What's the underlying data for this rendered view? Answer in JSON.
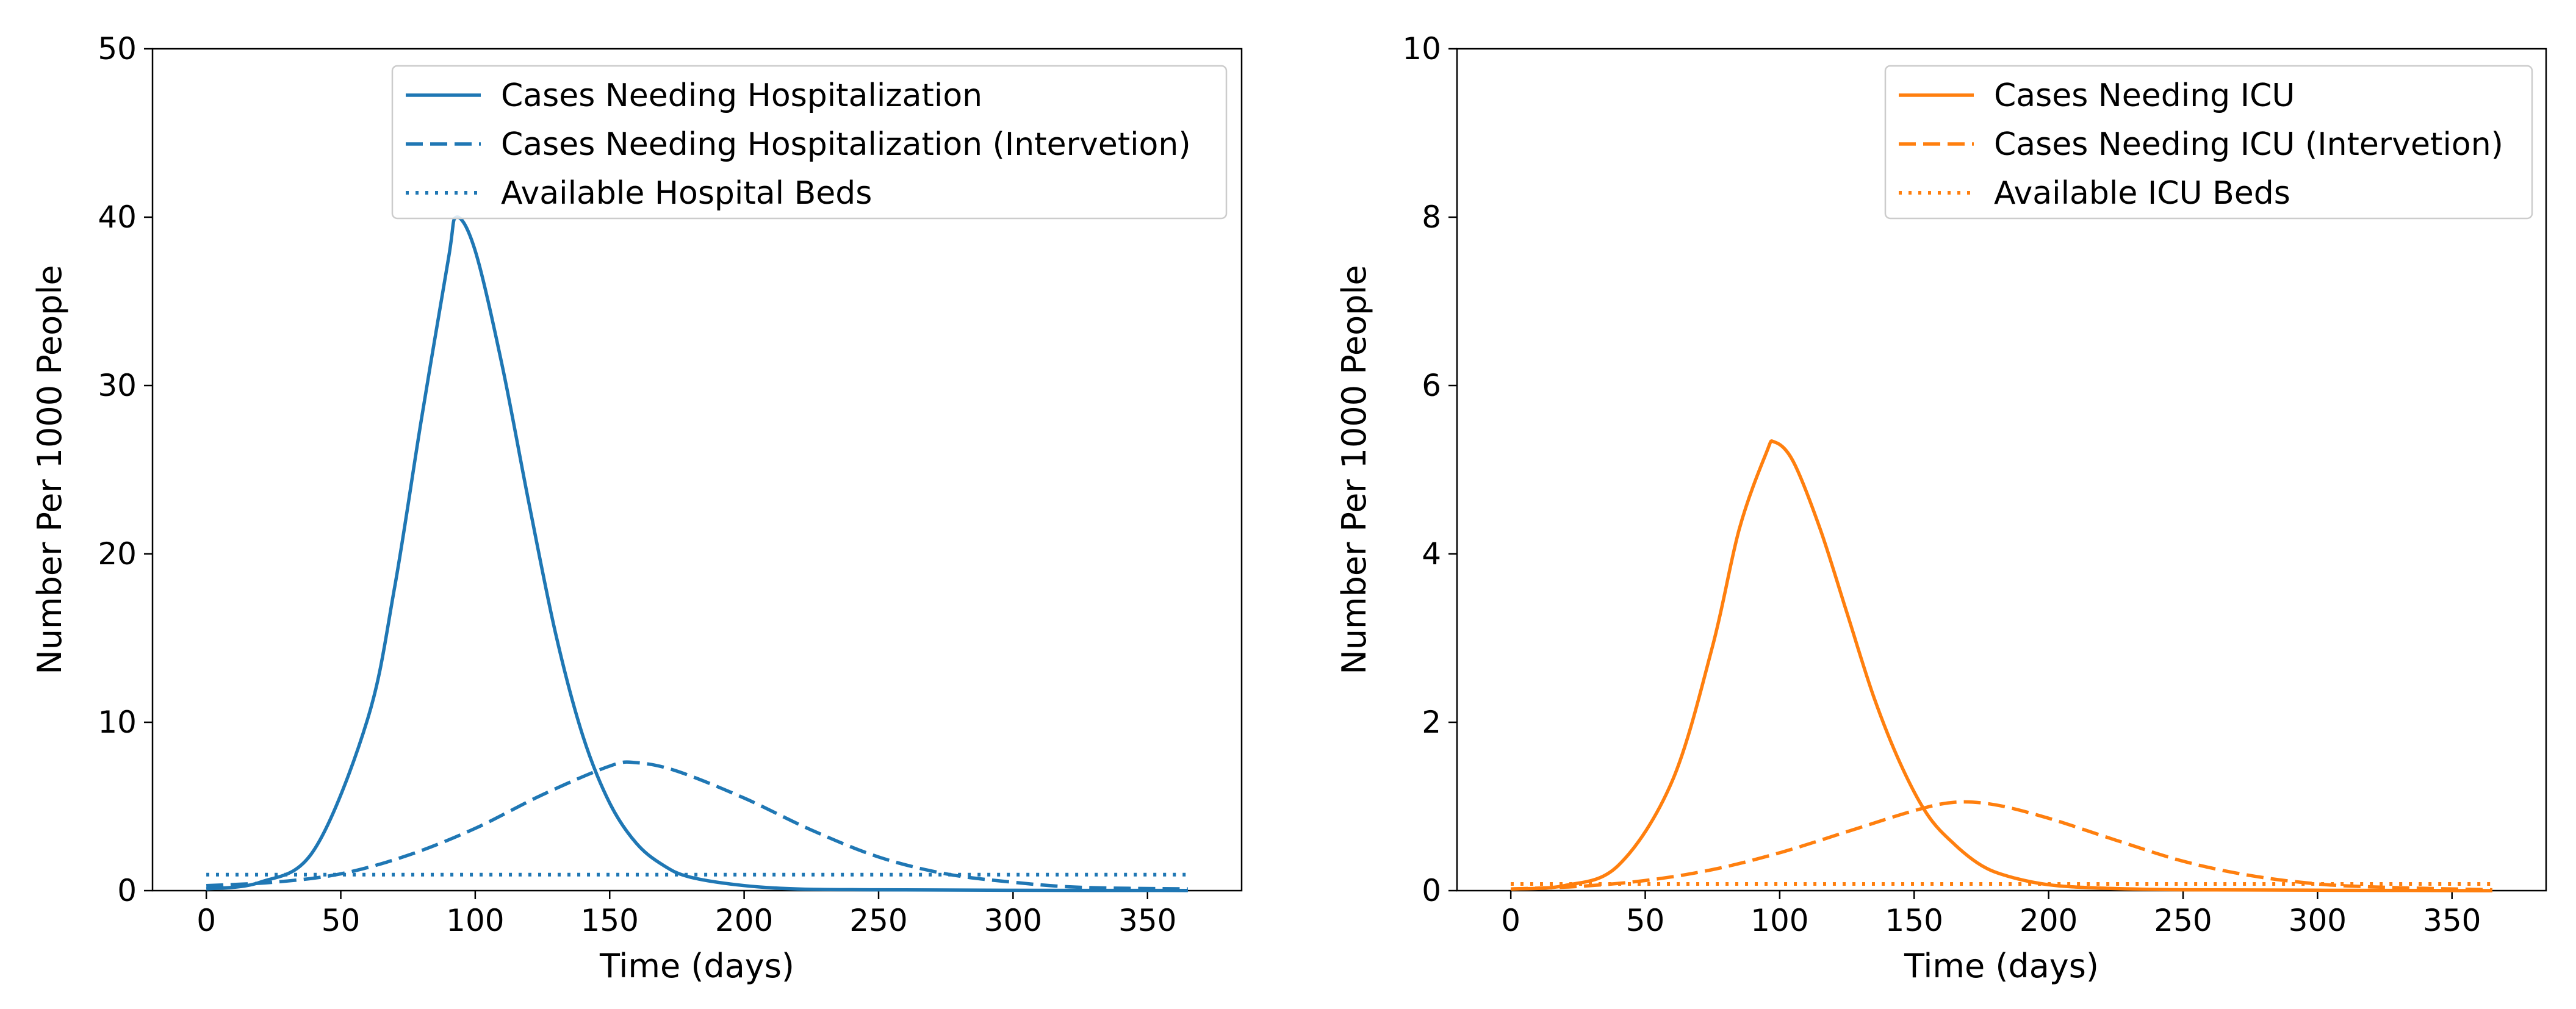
{
  "chart_data": [
    {
      "type": "line",
      "color": "#1f77b4",
      "xlabel": "Time (days)",
      "ylabel": "Number Per 1000 People",
      "xlim": [
        -20,
        385
      ],
      "ylim": [
        0,
        50
      ],
      "xticks": [
        0,
        50,
        100,
        150,
        200,
        250,
        300,
        350
      ],
      "yticks": [
        0,
        10,
        20,
        30,
        40,
        50
      ],
      "legend_position": "top-right",
      "series": [
        {
          "name": "Cases Needing Hospitalization",
          "style": "solid",
          "x": [
            0,
            20,
            40,
            60,
            70,
            80,
            90,
            93,
            100,
            110,
            120,
            130,
            140,
            150,
            160,
            170,
            180,
            200,
            220,
            250,
            300,
            365
          ],
          "y": [
            0.1,
            0.5,
            2.4,
            10.2,
            18.0,
            28.0,
            37.5,
            40.0,
            38.0,
            31.2,
            23.0,
            15.2,
            9.2,
            5.2,
            2.8,
            1.5,
            0.8,
            0.3,
            0.1,
            0.05,
            0.02,
            0.01
          ]
        },
        {
          "name": "Cases Needing Hospitalization (Intervetion)",
          "style": "dashed",
          "x": [
            0,
            25,
            50,
            75,
            100,
            125,
            150,
            160,
            175,
            200,
            225,
            250,
            275,
            300,
            325,
            365
          ],
          "y": [
            0.3,
            0.5,
            1.0,
            2.1,
            3.7,
            5.7,
            7.4,
            7.6,
            7.1,
            5.5,
            3.6,
            2.0,
            1.0,
            0.5,
            0.2,
            0.1
          ]
        },
        {
          "name": "Available Hospital Beds",
          "style": "dotted",
          "x": [
            0,
            365
          ],
          "y": [
            0.95,
            0.95
          ]
        }
      ]
    },
    {
      "type": "line",
      "color": "#ff7f0e",
      "xlabel": "Time (days)",
      "ylabel": "Number Per 1000 People",
      "xlim": [
        -20,
        385
      ],
      "ylim": [
        0,
        10
      ],
      "xticks": [
        0,
        50,
        100,
        150,
        200,
        250,
        300,
        350
      ],
      "yticks": [
        0,
        2,
        4,
        6,
        8,
        10
      ],
      "legend_position": "top-right",
      "series": [
        {
          "name": "Cases Needing ICU",
          "style": "solid",
          "x": [
            0,
            20,
            40,
            60,
            75,
            85,
            95,
            98,
            105,
            115,
            125,
            135,
            145,
            155,
            165,
            175,
            185,
            200,
            220,
            250,
            300,
            365
          ],
          "y": [
            0.02,
            0.06,
            0.3,
            1.3,
            2.9,
            4.3,
            5.2,
            5.33,
            5.1,
            4.3,
            3.3,
            2.3,
            1.5,
            0.9,
            0.55,
            0.3,
            0.17,
            0.07,
            0.03,
            0.01,
            0.005,
            0.0
          ]
        },
        {
          "name": "Cases Needing ICU (Intervetion)",
          "style": "dashed",
          "x": [
            0,
            25,
            50,
            75,
            100,
            125,
            150,
            165,
            180,
            200,
            225,
            250,
            275,
            300,
            325,
            365
          ],
          "y": [
            0.02,
            0.05,
            0.12,
            0.25,
            0.45,
            0.7,
            0.95,
            1.05,
            1.02,
            0.86,
            0.6,
            0.35,
            0.18,
            0.08,
            0.04,
            0.01
          ]
        },
        {
          "name": "Available ICU Beds",
          "style": "dotted",
          "x": [
            0,
            365
          ],
          "y": [
            0.08,
            0.08
          ]
        }
      ]
    }
  ]
}
